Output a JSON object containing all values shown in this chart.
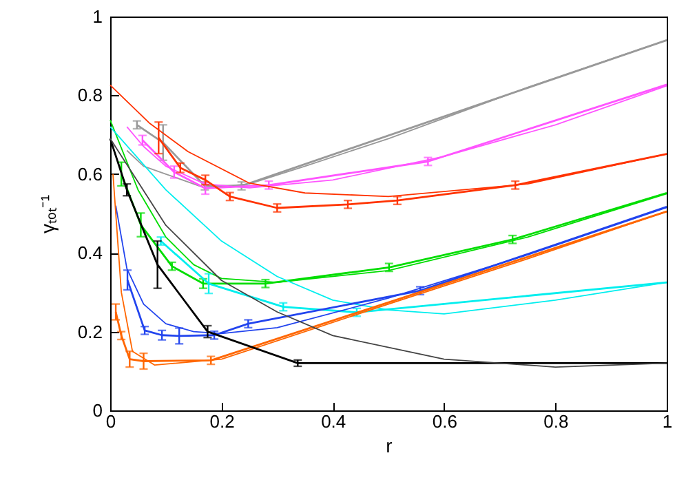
{
  "chart_data": {
    "type": "line",
    "xlabel": "r",
    "ylabel": "γₜₒₜ⁻¹",
    "xlim": [
      0,
      1
    ],
    "ylim": [
      0,
      1
    ],
    "xticks": [
      0,
      0.2,
      0.4,
      0.6,
      0.8,
      1
    ],
    "yticks": [
      0,
      0.2,
      0.4,
      0.6,
      0.8,
      1
    ],
    "grid": false,
    "marker": "none",
    "line_style": "solid",
    "series": [
      {
        "color": "#999999",
        "x": [
          0.048,
          0.095,
          0.17,
          0.236,
          1
        ],
        "values": [
          0.725,
          0.68,
          0.57,
          0.57,
          0.94
        ],
        "errors": [
          0.01,
          0.045,
          0.01,
          0.01,
          null
        ]
      },
      {
        "color": "#999999",
        "x": [
          0.03,
          0.06,
          0.1,
          0.17,
          0.25,
          0.35,
          0.5,
          0.75,
          1
        ],
        "values": [
          0.66,
          0.62,
          0.6,
          0.565,
          0.575,
          0.62,
          0.69,
          0.82,
          0.94
        ]
      },
      {
        "color": "#ff55ff",
        "x": [
          0.058,
          0.115,
          0.171,
          0.285,
          0.571,
          1
        ],
        "values": [
          0.686,
          0.605,
          0.564,
          0.572,
          0.632,
          0.827
        ],
        "errors": [
          0.012,
          0.015,
          0.015,
          0.01,
          0.01,
          null
        ]
      },
      {
        "color": "#ff55ff",
        "x": [
          0.03,
          0.06,
          0.1,
          0.17,
          0.25,
          0.4,
          0.6,
          0.8,
          1
        ],
        "values": [
          0.72,
          0.67,
          0.62,
          0.575,
          0.565,
          0.585,
          0.645,
          0.725,
          0.824
        ]
      },
      {
        "color": "#ff3300",
        "x": [
          0.087,
          0.126,
          0.171,
          0.215,
          0.3,
          0.427,
          0.516,
          0.728,
          1
        ],
        "values": [
          0.692,
          0.616,
          0.585,
          0.543,
          0.514,
          0.523,
          0.533,
          0.572,
          0.651
        ],
        "errors": [
          0.04,
          0.012,
          0.012,
          0.01,
          0.01,
          0.01,
          0.01,
          0.01,
          null
        ]
      },
      {
        "color": "#ff3300",
        "x": [
          0,
          0.07,
          0.14,
          0.25,
          0.35,
          0.5,
          0.75,
          1
        ],
        "values": [
          0.826,
          0.73,
          0.657,
          0.577,
          0.552,
          0.543,
          0.575,
          0.651
        ]
      },
      {
        "color": "#00dd00",
        "x": [
          0.02,
          0.055,
          0.111,
          0.167,
          0.279,
          0.501,
          0.723,
          1
        ],
        "values": [
          0.6,
          0.471,
          0.366,
          0.322,
          0.322,
          0.363,
          0.434,
          0.552
        ],
        "errors": [
          0.03,
          0.03,
          0.01,
          0.012,
          0.01,
          0.01,
          0.01,
          null
        ]
      },
      {
        "color": "#00dd00",
        "x": [
          0,
          0.05,
          0.1,
          0.15,
          0.2,
          0.3,
          0.5,
          0.75,
          1
        ],
        "values": [
          0.737,
          0.56,
          0.44,
          0.37,
          0.335,
          0.325,
          0.355,
          0.44,
          0.55
        ]
      },
      {
        "color": "#00eeee",
        "x": [
          0.091,
          0.177,
          0.311,
          0.443,
          1
        ],
        "values": [
          0.43,
          0.322,
          0.263,
          0.249,
          0.325
        ],
        "errors": [
          0.01,
          0.025,
          0.01,
          0.01,
          null
        ]
      },
      {
        "color": "#00eeee",
        "x": [
          0,
          0.1,
          0.2,
          0.3,
          0.4,
          0.5,
          0.6,
          0.8,
          1
        ],
        "values": [
          0.72,
          0.56,
          0.43,
          0.34,
          0.28,
          0.255,
          0.245,
          0.28,
          0.325
        ]
      },
      {
        "color": "#2244ee",
        "x": [
          0.031,
          0.062,
          0.093,
          0.124,
          0.187,
          0.248,
          0.557,
          1
        ],
        "values": [
          0.331,
          0.203,
          0.191,
          0.189,
          0.191,
          0.22,
          0.304,
          0.517
        ],
        "errors": [
          0.025,
          0.01,
          0.012,
          0.02,
          0.01,
          0.01,
          0.01,
          null
        ]
      },
      {
        "color": "#2244ee",
        "x": [
          0.01,
          0.03,
          0.06,
          0.1,
          0.15,
          0.2,
          0.3,
          0.5,
          0.75,
          1
        ],
        "values": [
          0.52,
          0.36,
          0.27,
          0.22,
          0.2,
          0.195,
          0.21,
          0.285,
          0.395,
          0.515
        ]
      },
      {
        "color": "#ff6600",
        "x": [
          0.01,
          0.02,
          0.035,
          0.06,
          0.181,
          1
        ],
        "values": [
          0.25,
          0.19,
          0.13,
          0.125,
          0.127,
          0.505
        ],
        "errors": [
          0.02,
          0.01,
          0.02,
          0.02,
          0.01,
          null
        ]
      },
      {
        "color": "#ff6600",
        "x": [
          0.005,
          0.02,
          0.04,
          0.08,
          0.2,
          0.5,
          0.75,
          1
        ],
        "values": [
          0.6,
          0.3,
          0.15,
          0.115,
          0.13,
          0.27,
          0.385,
          0.505
        ]
      },
      {
        "color": "#000000",
        "x": [
          0,
          0.03,
          0.085,
          0.175,
          0.337,
          1
        ],
        "values": [
          0.69,
          0.56,
          0.37,
          0.2,
          0.12,
          0.12
        ],
        "errors": [
          null,
          0.015,
          0.06,
          0.015,
          0.008,
          null
        ]
      },
      {
        "color": "#444444",
        "x": [
          0,
          0.1,
          0.2,
          0.3,
          0.4,
          0.6,
          0.8,
          1
        ],
        "values": [
          0.69,
          0.47,
          0.33,
          0.25,
          0.19,
          0.13,
          0.11,
          0.12
        ]
      }
    ]
  }
}
